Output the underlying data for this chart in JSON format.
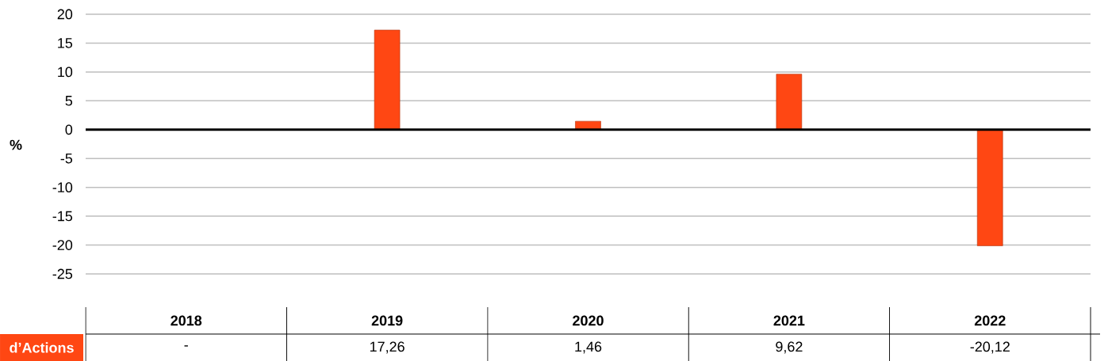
{
  "chart_data": {
    "type": "bar",
    "ylabel": "%",
    "categories": [
      "2018",
      "2019",
      "2020",
      "2021",
      "2022"
    ],
    "series": [
      {
        "name": "d’Actions",
        "color": "#ff4713",
        "values": [
          null,
          17.26,
          1.46,
          9.62,
          -20.12
        ],
        "value_labels": [
          "-",
          "17,26",
          "1,46",
          "9,62",
          "-20,12"
        ]
      }
    ],
    "ylim": [
      -25,
      20
    ],
    "yticks": [
      -25,
      -20,
      -15,
      -10,
      -5,
      0,
      5,
      10,
      15,
      20
    ],
    "grid": "y"
  }
}
